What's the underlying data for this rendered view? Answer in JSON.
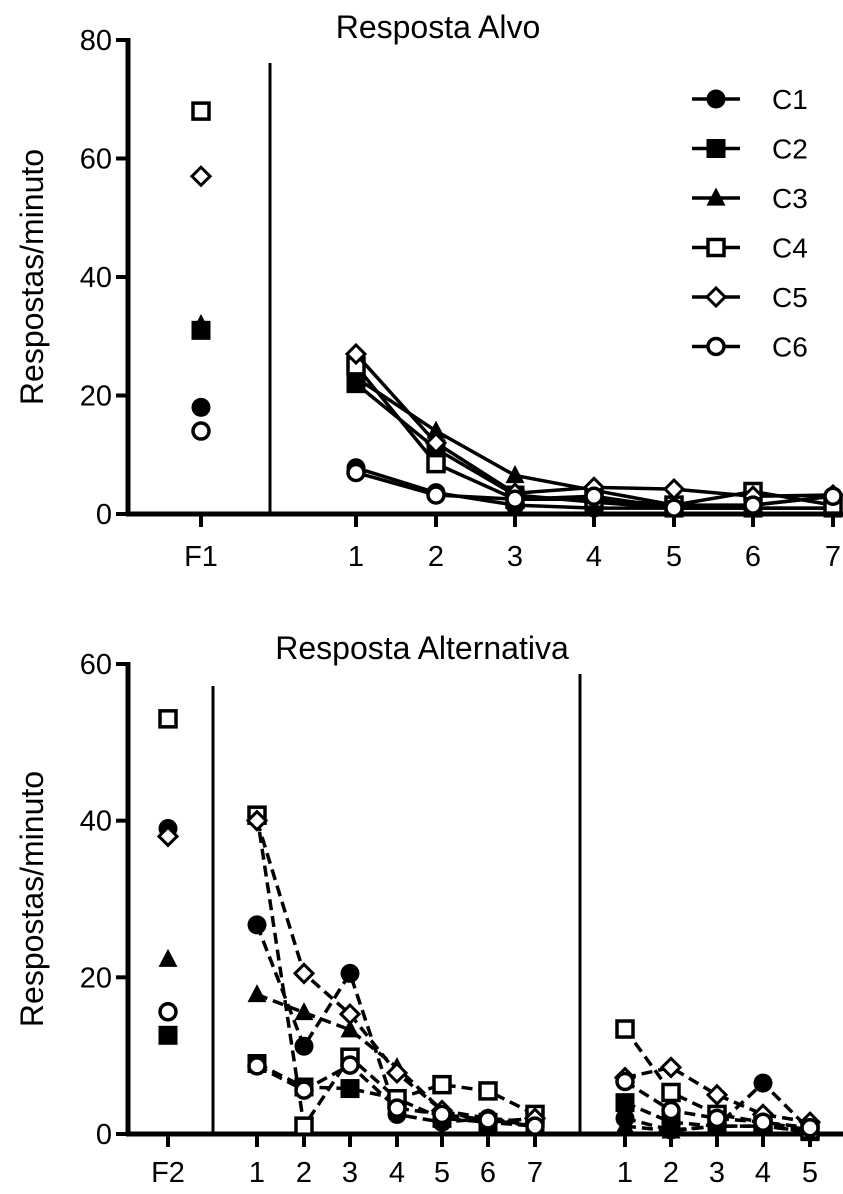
{
  "chart_data": [
    {
      "type": "line",
      "title": "Resposta Alvo",
      "ylabel": "Respostas/minuto",
      "ylim": [
        0,
        80
      ],
      "yticks": [
        0,
        20,
        40,
        60,
        80
      ],
      "baseline_label": "F1",
      "groups": [
        {
          "x": [
            "1",
            "2",
            "3",
            "4",
            "5",
            "6",
            "7"
          ],
          "line_style": "solid"
        }
      ],
      "legend": {
        "placement": "top-right"
      },
      "series": [
        {
          "name": "C1",
          "marker": "circle-filled",
          "baseline": 18,
          "groups": [
            [
              7.8,
              3.6,
              1.5,
              1.0,
              1.0,
              1.0,
              1.0
            ]
          ]
        },
        {
          "name": "C2",
          "marker": "square-filled",
          "baseline": 31,
          "groups": [
            [
              22,
              11,
              3.2,
              2.0,
              1.0,
              1.0,
              1.0
            ]
          ]
        },
        {
          "name": "C3",
          "marker": "triangle-filled",
          "baseline": 32,
          "groups": [
            [
              23,
              14,
              6.5,
              4.0,
              1.5,
              1.5,
              3.0
            ]
          ]
        },
        {
          "name": "C4",
          "marker": "square-open",
          "baseline": 68,
          "groups": [
            [
              25,
              8.5,
              2.5,
              2.5,
              1.5,
              3.8,
              1.5
            ]
          ]
        },
        {
          "name": "C5",
          "marker": "diamond-open",
          "baseline": 57,
          "groups": [
            [
              27,
              12,
              3.5,
              4.5,
              4.2,
              3.0,
              3.2
            ]
          ]
        },
        {
          "name": "C6",
          "marker": "circle-open",
          "baseline": 14,
          "groups": [
            [
              7.0,
              3.2,
              2.5,
              3.0,
              1.0,
              1.5,
              3.0
            ]
          ]
        }
      ]
    },
    {
      "type": "line",
      "title": "Resposta Alternativa",
      "ylabel": "Respostas/minuto",
      "ylim": [
        0,
        60
      ],
      "yticks": [
        0,
        20,
        40,
        60
      ],
      "baseline_label": "F2",
      "groups": [
        {
          "x": [
            "1",
            "2",
            "3",
            "4",
            "5",
            "6",
            "7"
          ],
          "line_style": "dashed"
        },
        {
          "x": [
            "1",
            "2",
            "3",
            "4",
            "5"
          ],
          "line_style": "dashed"
        }
      ],
      "series": [
        {
          "name": "C1",
          "marker": "circle-filled",
          "baseline": 39,
          "groups": [
            [
              26.7,
              11.2,
              20.5,
              2.5,
              1.5,
              2.0,
              1.0
            ],
            [
              2.0,
              0.5,
              1.0,
              6.5,
              0.5
            ]
          ]
        },
        {
          "name": "C2",
          "marker": "square-filled",
          "baseline": 12.6,
          "groups": [
            [
              9.0,
              6.0,
              5.8,
              4.5,
              2.0,
              1.5,
              1.0
            ],
            [
              4.0,
              1.5,
              1.0,
              1.0,
              0.3
            ]
          ]
        },
        {
          "name": "C3",
          "marker": "triangle-filled",
          "baseline": 22.3,
          "groups": [
            [
              17.8,
              15.5,
              13.3,
              8.5,
              3.0,
              2.0,
              1.5
            ],
            [
              1.0,
              0.4,
              1.0,
              1.0,
              0.3
            ]
          ]
        },
        {
          "name": "C4",
          "marker": "square-open",
          "baseline": 53,
          "groups": [
            [
              40.7,
              1.0,
              9.8,
              4.5,
              6.3,
              5.5,
              2.5
            ],
            [
              13.4,
              5.3,
              2.5,
              1.5,
              0.5
            ]
          ]
        },
        {
          "name": "C5",
          "marker": "diamond-open",
          "baseline": 38,
          "groups": [
            [
              40.0,
              20.5,
              15.3,
              7.8,
              3.0,
              1.5,
              2.0
            ],
            [
              7.2,
              8.5,
              5.0,
              2.5,
              1.5
            ]
          ]
        },
        {
          "name": "C6",
          "marker": "circle-open",
          "baseline": 15.6,
          "groups": [
            [
              8.7,
              5.6,
              8.8,
              3.3,
              2.5,
              1.8,
              1.0
            ],
            [
              6.7,
              3.0,
              2.0,
              1.5,
              0.8
            ]
          ]
        }
      ]
    }
  ]
}
